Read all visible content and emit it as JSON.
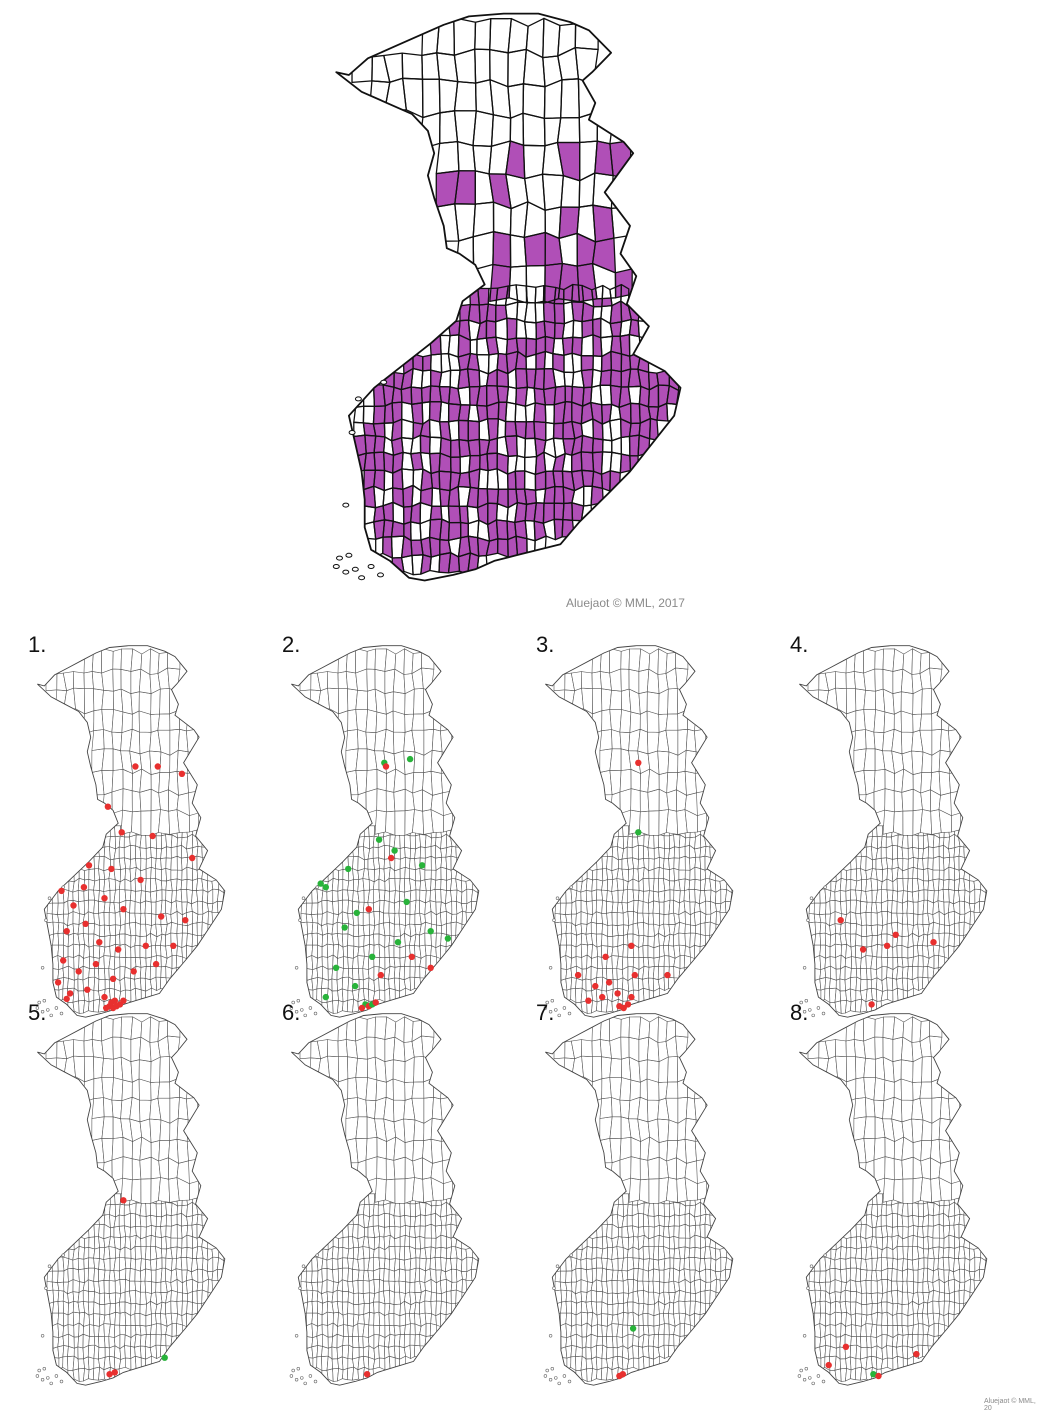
{
  "main_map": {
    "fill_color": "#b04fb7",
    "outline_color": "#111111",
    "credit": "Aluejaot © MML, 2017"
  },
  "panel_credit": "Aluejaot © MML, 20",
  "legend_colors": {
    "red": "#e8302f",
    "green": "#28b33a"
  },
  "panels": [
    {
      "number": "1.",
      "dots": [
        {
          "lon": 26.3,
          "lat": 66.8,
          "c": "red"
        },
        {
          "lon": 27.6,
          "lat": 66.8,
          "c": "red"
        },
        {
          "lon": 29.0,
          "lat": 66.6,
          "c": "red"
        },
        {
          "lon": 24.7,
          "lat": 65.7,
          "c": "red"
        },
        {
          "lon": 25.5,
          "lat": 65.0,
          "c": "red"
        },
        {
          "lon": 27.3,
          "lat": 64.9,
          "c": "red"
        },
        {
          "lon": 29.6,
          "lat": 64.3,
          "c": "red"
        },
        {
          "lon": 23.6,
          "lat": 64.1,
          "c": "red"
        },
        {
          "lon": 24.9,
          "lat": 64.0,
          "c": "red"
        },
        {
          "lon": 26.6,
          "lat": 63.7,
          "c": "red"
        },
        {
          "lon": 22.0,
          "lat": 63.4,
          "c": "red"
        },
        {
          "lon": 22.7,
          "lat": 63.0,
          "c": "red"
        },
        {
          "lon": 23.3,
          "lat": 63.5,
          "c": "red"
        },
        {
          "lon": 24.5,
          "lat": 63.2,
          "c": "red"
        },
        {
          "lon": 25.6,
          "lat": 62.9,
          "c": "red"
        },
        {
          "lon": 27.8,
          "lat": 62.7,
          "c": "red"
        },
        {
          "lon": 29.2,
          "lat": 62.6,
          "c": "red"
        },
        {
          "lon": 22.3,
          "lat": 62.3,
          "c": "red"
        },
        {
          "lon": 23.4,
          "lat": 62.5,
          "c": "red"
        },
        {
          "lon": 24.2,
          "lat": 62.0,
          "c": "red"
        },
        {
          "lon": 25.3,
          "lat": 61.8,
          "c": "red"
        },
        {
          "lon": 26.9,
          "lat": 61.9,
          "c": "red"
        },
        {
          "lon": 28.5,
          "lat": 61.9,
          "c": "red"
        },
        {
          "lon": 22.1,
          "lat": 61.5,
          "c": "red"
        },
        {
          "lon": 23.0,
          "lat": 61.2,
          "c": "red"
        },
        {
          "lon": 24.0,
          "lat": 61.4,
          "c": "red"
        },
        {
          "lon": 25.0,
          "lat": 61.0,
          "c": "red"
        },
        {
          "lon": 26.2,
          "lat": 61.2,
          "c": "red"
        },
        {
          "lon": 27.5,
          "lat": 61.4,
          "c": "red"
        },
        {
          "lon": 22.5,
          "lat": 60.6,
          "c": "red"
        },
        {
          "lon": 23.5,
          "lat": 60.7,
          "c": "red"
        },
        {
          "lon": 24.5,
          "lat": 60.5,
          "c": "red"
        },
        {
          "lon": 24.8,
          "lat": 60.25,
          "c": "red"
        },
        {
          "lon": 25.0,
          "lat": 60.2,
          "c": "red"
        },
        {
          "lon": 25.2,
          "lat": 60.25,
          "c": "red"
        },
        {
          "lon": 24.9,
          "lat": 60.35,
          "c": "red"
        },
        {
          "lon": 25.4,
          "lat": 60.3,
          "c": "red"
        },
        {
          "lon": 24.6,
          "lat": 60.2,
          "c": "red"
        },
        {
          "lon": 25.1,
          "lat": 60.4,
          "c": "red"
        },
        {
          "lon": 25.6,
          "lat": 60.4,
          "c": "red"
        },
        {
          "lon": 22.3,
          "lat": 60.45,
          "c": "red"
        },
        {
          "lon": 21.8,
          "lat": 60.9,
          "c": "red"
        }
      ]
    },
    {
      "number": "2.",
      "dots": [
        {
          "lon": 26.0,
          "lat": 66.9,
          "c": "green"
        },
        {
          "lon": 26.1,
          "lat": 66.8,
          "c": "red"
        },
        {
          "lon": 27.5,
          "lat": 67.0,
          "c": "green"
        },
        {
          "lon": 25.7,
          "lat": 64.8,
          "c": "green"
        },
        {
          "lon": 26.6,
          "lat": 64.5,
          "c": "green"
        },
        {
          "lon": 26.4,
          "lat": 64.3,
          "c": "red"
        },
        {
          "lon": 28.2,
          "lat": 64.1,
          "c": "green"
        },
        {
          "lon": 23.9,
          "lat": 64.0,
          "c": "green"
        },
        {
          "lon": 22.3,
          "lat": 63.6,
          "c": "green"
        },
        {
          "lon": 22.6,
          "lat": 63.5,
          "c": "green"
        },
        {
          "lon": 24.4,
          "lat": 62.8,
          "c": "green"
        },
        {
          "lon": 25.1,
          "lat": 62.9,
          "c": "red"
        },
        {
          "lon": 27.3,
          "lat": 63.1,
          "c": "green"
        },
        {
          "lon": 23.7,
          "lat": 62.4,
          "c": "green"
        },
        {
          "lon": 28.7,
          "lat": 62.3,
          "c": "green"
        },
        {
          "lon": 29.7,
          "lat": 62.1,
          "c": "green"
        },
        {
          "lon": 26.8,
          "lat": 62.0,
          "c": "green"
        },
        {
          "lon": 25.3,
          "lat": 61.6,
          "c": "green"
        },
        {
          "lon": 27.6,
          "lat": 61.6,
          "c": "red"
        },
        {
          "lon": 23.2,
          "lat": 61.3,
          "c": "green"
        },
        {
          "lon": 25.8,
          "lat": 61.1,
          "c": "red"
        },
        {
          "lon": 28.7,
          "lat": 61.3,
          "c": "red"
        },
        {
          "lon": 24.3,
          "lat": 60.8,
          "c": "green"
        },
        {
          "lon": 22.6,
          "lat": 60.5,
          "c": "green"
        },
        {
          "lon": 24.9,
          "lat": 60.3,
          "c": "green"
        },
        {
          "lon": 25.1,
          "lat": 60.25,
          "c": "red"
        },
        {
          "lon": 25.3,
          "lat": 60.3,
          "c": "green"
        },
        {
          "lon": 24.7,
          "lat": 60.2,
          "c": "red"
        },
        {
          "lon": 25.5,
          "lat": 60.35,
          "c": "red"
        }
      ]
    },
    {
      "number": "3.",
      "dots": [
        {
          "lon": 26.0,
          "lat": 66.9,
          "c": "red"
        },
        {
          "lon": 26.0,
          "lat": 65.0,
          "c": "green"
        },
        {
          "lon": 24.1,
          "lat": 61.6,
          "c": "red"
        },
        {
          "lon": 25.6,
          "lat": 61.9,
          "c": "red"
        },
        {
          "lon": 22.5,
          "lat": 61.1,
          "c": "red"
        },
        {
          "lon": 23.5,
          "lat": 60.8,
          "c": "red"
        },
        {
          "lon": 24.3,
          "lat": 60.9,
          "c": "red"
        },
        {
          "lon": 25.8,
          "lat": 61.1,
          "c": "red"
        },
        {
          "lon": 27.7,
          "lat": 61.1,
          "c": "red"
        },
        {
          "lon": 23.9,
          "lat": 60.5,
          "c": "red"
        },
        {
          "lon": 24.8,
          "lat": 60.6,
          "c": "red"
        },
        {
          "lon": 25.6,
          "lat": 60.5,
          "c": "red"
        },
        {
          "lon": 24.9,
          "lat": 60.25,
          "c": "red"
        },
        {
          "lon": 25.15,
          "lat": 60.2,
          "c": "red"
        },
        {
          "lon": 25.4,
          "lat": 60.3,
          "c": "red"
        },
        {
          "lon": 23.1,
          "lat": 60.4,
          "c": "red"
        }
      ]
    },
    {
      "number": "4.",
      "dots": [
        {
          "lon": 23.0,
          "lat": 62.6,
          "c": "red"
        },
        {
          "lon": 26.2,
          "lat": 62.2,
          "c": "red"
        },
        {
          "lon": 28.4,
          "lat": 62.0,
          "c": "red"
        },
        {
          "lon": 24.3,
          "lat": 61.8,
          "c": "red"
        },
        {
          "lon": 25.7,
          "lat": 61.9,
          "c": "red"
        },
        {
          "lon": 24.8,
          "lat": 60.3,
          "c": "red"
        }
      ]
    },
    {
      "number": "5.",
      "dots": [
        {
          "lon": 25.6,
          "lat": 65.0,
          "c": "red"
        },
        {
          "lon": 24.8,
          "lat": 60.25,
          "c": "red"
        },
        {
          "lon": 25.1,
          "lat": 60.3,
          "c": "red"
        },
        {
          "lon": 28.0,
          "lat": 60.7,
          "c": "green"
        }
      ]
    },
    {
      "number": "6.",
      "dots": [
        {
          "lon": 25.0,
          "lat": 60.25,
          "c": "red"
        }
      ]
    },
    {
      "number": "7.",
      "dots": [
        {
          "lon": 25.7,
          "lat": 61.5,
          "c": "green"
        },
        {
          "lon": 24.9,
          "lat": 60.2,
          "c": "red"
        },
        {
          "lon": 25.1,
          "lat": 60.25,
          "c": "red"
        }
      ]
    },
    {
      "number": "8.",
      "dots": [
        {
          "lon": 23.3,
          "lat": 61.0,
          "c": "red"
        },
        {
          "lon": 27.4,
          "lat": 60.8,
          "c": "red"
        },
        {
          "lon": 22.3,
          "lat": 60.5,
          "c": "red"
        },
        {
          "lon": 24.9,
          "lat": 60.25,
          "c": "green"
        },
        {
          "lon": 25.2,
          "lat": 60.2,
          "c": "red"
        }
      ]
    }
  ]
}
